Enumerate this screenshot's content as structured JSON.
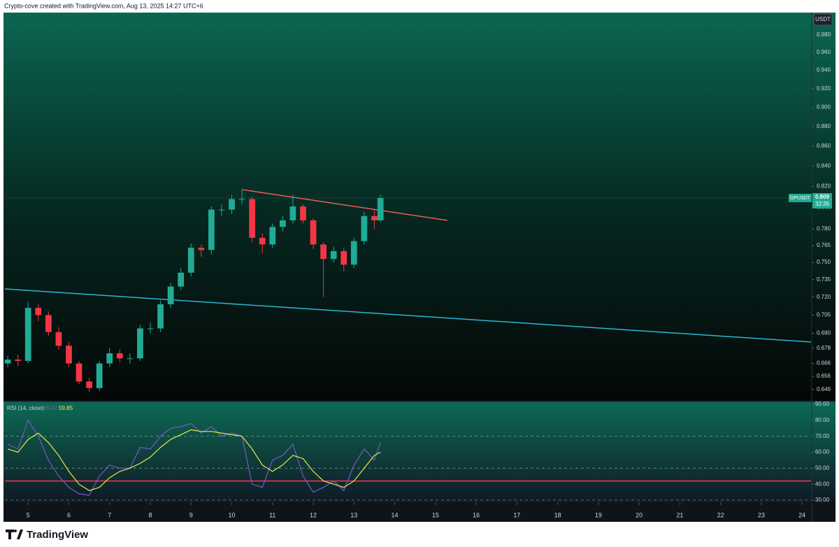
{
  "header": "Crypto-cove created with TradingView.com, Aug 13, 2025 14:27 UTC+6",
  "footer": "TradingView",
  "chart_data": [
    {
      "type": "candlestick",
      "symbol": "OPUSDT",
      "currency": "USDT",
      "last_price": 0.809,
      "countdown": "32:26",
      "up_color": "#22ab94",
      "down_color": "#f23645",
      "log_scale": true,
      "x": [
        4.5,
        4.75,
        5,
        5.25,
        5.5,
        5.75,
        6,
        6.25,
        6.5,
        6.75,
        7,
        7.25,
        7.5,
        7.75,
        8,
        8.25,
        8.5,
        8.75,
        9,
        9.25,
        9.5,
        9.75,
        10,
        10.25,
        10.5,
        10.75,
        11,
        11.25,
        11.5,
        11.75,
        12,
        12.25,
        12.5,
        12.75,
        13,
        13.25,
        13.5,
        13.65
      ],
      "open": [
        0.666,
        0.669,
        0.668,
        0.711,
        0.705,
        0.691,
        0.68,
        0.666,
        0.652,
        0.647,
        0.666,
        0.674,
        0.67,
        0.67,
        0.694,
        0.694,
        0.714,
        0.729,
        0.741,
        0.763,
        0.761,
        0.798,
        0.798,
        0.808,
        0.808,
        0.772,
        0.766,
        0.782,
        0.788,
        0.801,
        0.788,
        0.766,
        0.753,
        0.76,
        0.748,
        0.769,
        0.792,
        0.788
      ],
      "high": [
        0.672,
        0.673,
        0.716,
        0.714,
        0.708,
        0.695,
        0.683,
        0.668,
        0.655,
        0.668,
        0.678,
        0.677,
        0.674,
        0.697,
        0.699,
        0.717,
        0.732,
        0.745,
        0.767,
        0.766,
        0.801,
        0.803,
        0.812,
        0.817,
        0.81,
        0.776,
        0.785,
        0.792,
        0.812,
        0.803,
        0.79,
        0.768,
        0.764,
        0.763,
        0.772,
        0.796,
        0.798,
        0.812
      ],
      "low": [
        0.663,
        0.664,
        0.666,
        0.7,
        0.688,
        0.677,
        0.663,
        0.65,
        0.644,
        0.645,
        0.663,
        0.667,
        0.666,
        0.668,
        0.69,
        0.691,
        0.711,
        0.726,
        0.738,
        0.755,
        0.757,
        0.792,
        0.794,
        0.803,
        0.768,
        0.758,
        0.763,
        0.778,
        0.785,
        0.785,
        0.762,
        0.72,
        0.75,
        0.742,
        0.745,
        0.766,
        0.78,
        0.786
      ],
      "close": [
        0.669,
        0.668,
        0.711,
        0.705,
        0.691,
        0.68,
        0.666,
        0.652,
        0.647,
        0.666,
        0.674,
        0.67,
        0.67,
        0.694,
        0.694,
        0.714,
        0.729,
        0.741,
        0.763,
        0.761,
        0.798,
        0.798,
        0.808,
        0.808,
        0.772,
        0.766,
        0.782,
        0.788,
        0.801,
        0.788,
        0.766,
        0.753,
        0.76,
        0.748,
        0.769,
        0.792,
        0.788,
        0.809
      ],
      "xlim": [
        4.43,
        24.22
      ],
      "xticks": [
        5,
        6,
        7,
        8,
        9,
        10,
        11,
        12,
        13,
        14,
        15,
        16,
        17,
        18,
        19,
        20,
        21,
        22,
        23,
        24
      ],
      "ylim": [
        0.64,
        1.006
      ],
      "yticks": [
        {
          "value": 0.646,
          "label": "0.646"
        },
        {
          "value": 0.656,
          "label": "0.656"
        },
        {
          "value": 0.666,
          "label": "0.666"
        },
        {
          "value": 0.678,
          "label": "0.678"
        },
        {
          "value": 0.69,
          "label": "0.690"
        },
        {
          "value": 0.705,
          "label": "0.705"
        },
        {
          "value": 0.72,
          "label": "0.720"
        },
        {
          "value": 0.735,
          "label": "0.735"
        },
        {
          "value": 0.75,
          "label": "0.750"
        },
        {
          "value": 0.765,
          "label": "0.765"
        },
        {
          "value": 0.78,
          "label": "0.780"
        },
        {
          "value": 0.8,
          "label": "0.800"
        },
        {
          "value": 0.82,
          "label": "0.820"
        },
        {
          "value": 0.84,
          "label": "0.840"
        },
        {
          "value": 0.86,
          "label": "0.860"
        },
        {
          "value": 0.88,
          "label": "0.880"
        },
        {
          "value": 0.9,
          "label": "0.900"
        },
        {
          "value": 0.92,
          "label": "0.920"
        },
        {
          "value": 0.94,
          "label": "0.940"
        },
        {
          "value": 0.96,
          "label": "0.960"
        },
        {
          "value": 0.98,
          "label": "0.980"
        }
      ],
      "trendlines": [
        {
          "x": [
            10.25,
            15.29
          ],
          "y": [
            0.817,
            0.788
          ],
          "color": "#f05a5a"
        },
        {
          "x": [
            4.43,
            24.22
          ],
          "y": [
            0.727,
            0.683
          ],
          "color": "#29b6d6"
        }
      ]
    },
    {
      "type": "line",
      "title": "RSI (14, close)",
      "series": [
        {
          "color": "#7e57c2",
          "last_value": 65.92,
          "values": [
            65,
            62,
            80,
            70,
            55,
            45,
            38,
            34,
            33,
            45,
            52,
            50,
            50,
            63,
            62,
            70,
            75,
            76,
            78,
            72,
            76,
            70,
            72,
            70,
            40,
            38,
            55,
            58,
            65,
            45,
            35,
            38,
            42,
            36,
            52,
            62,
            55,
            66
          ]
        },
        {
          "color": "#e8e84a",
          "last_value": 59.85,
          "values": [
            62,
            60,
            68,
            72,
            66,
            58,
            48,
            40,
            36,
            38,
            44,
            48,
            50,
            53,
            57,
            63,
            68,
            71,
            74,
            73,
            73,
            72,
            71,
            70,
            62,
            52,
            48,
            52,
            58,
            56,
            48,
            42,
            40,
            38,
            42,
            50,
            58,
            60
          ]
        }
      ],
      "levels": [
        70,
        50,
        30
      ],
      "hline": {
        "value": 42,
        "color": "#f2365a"
      },
      "ylim": [
        30,
        90
      ],
      "yticks": [
        {
          "value": 30,
          "label": "30.00"
        },
        {
          "value": 40,
          "label": "40.00"
        },
        {
          "value": 50,
          "label": "50.00"
        },
        {
          "value": 60,
          "label": "60.00"
        },
        {
          "value": 70,
          "label": "70.00"
        },
        {
          "value": 80,
          "label": "80.00"
        },
        {
          "value": 90,
          "label": "90.00"
        }
      ]
    }
  ]
}
